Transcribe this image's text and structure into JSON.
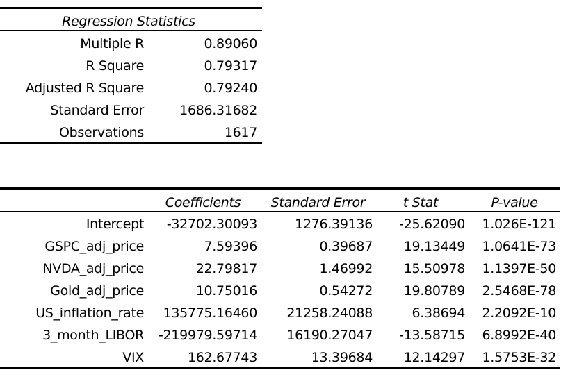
{
  "regression_statistics": {
    "title": "Regression Statistics",
    "rows": [
      {
        "label": "Multiple R",
        "value": "0.89060"
      },
      {
        "label": "R Square",
        "value": "0.79317"
      },
      {
        "label": "Adjusted R Square",
        "value": "0.79240"
      },
      {
        "label": "Standard Error",
        "value": "1686.31682"
      },
      {
        "label": "Observations",
        "value": "1617"
      }
    ]
  },
  "coefficients_table": {
    "headers": [
      "Coefficients",
      "Standard Error",
      "t Stat",
      "P-value"
    ],
    "rows": [
      {
        "label": "Intercept",
        "coef": "-32702.30093",
        "se": "1276.39136",
        "t": "-25.62090",
        "p": "1.026E-121"
      },
      {
        "label": "GSPC_adj_price",
        "coef": "7.59396",
        "se": "0.39687",
        "t": "19.13449",
        "p": "1.0641E-73"
      },
      {
        "label": "NVDA_adj_price",
        "coef": "22.79817",
        "se": "1.46992",
        "t": "15.50978",
        "p": "1.1397E-50"
      },
      {
        "label": "Gold_adj_price",
        "coef": "10.75016",
        "se": "0.54272",
        "t": "19.80789",
        "p": "2.5468E-78"
      },
      {
        "label": "US_inflation_rate",
        "coef": "135775.16460",
        "se": "21258.24088",
        "t": "6.38694",
        "p": "2.2092E-10"
      },
      {
        "label": "3_month_LIBOR",
        "coef": "-219979.59714",
        "se": "16190.27047",
        "t": "-13.58715",
        "p": "6.8992E-40"
      },
      {
        "label": "VIX",
        "coef": "162.67743",
        "se": "13.39684",
        "t": "12.14297",
        "p": "1.5753E-32"
      }
    ]
  }
}
